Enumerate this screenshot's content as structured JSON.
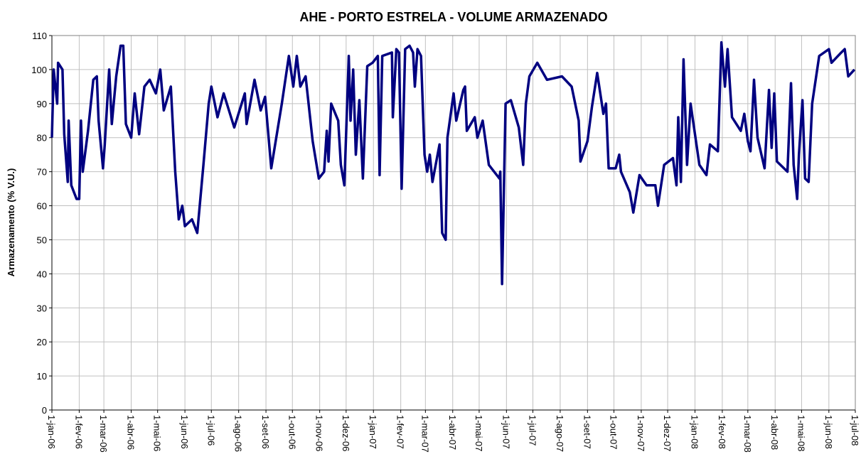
{
  "chart_data": {
    "type": "line",
    "title": "AHE - PORTO ESTRELA - VOLUME ARMAZENADO",
    "y_label": "Armazenamento (% V.U.)",
    "x": [
      "2006-01-01",
      "2006-01-03",
      "2006-01-07",
      "2006-01-08",
      "2006-01-13",
      "2006-01-15",
      "2006-01-19",
      "2006-01-20",
      "2006-01-23",
      "2006-01-29",
      "2006-02-01",
      "2006-02-03",
      "2006-02-05",
      "2006-02-11",
      "2006-02-17",
      "2006-02-21",
      "2006-02-23",
      "2006-02-28",
      "2006-03-02",
      "2006-03-07",
      "2006-03-10",
      "2006-03-15",
      "2006-03-20",
      "2006-03-23",
      "2006-03-26",
      "2006-04-01",
      "2006-04-05",
      "2006-04-10",
      "2006-04-16",
      "2006-04-22",
      "2006-04-29",
      "2006-05-04",
      "2006-05-08",
      "2006-05-16",
      "2006-05-21",
      "2006-05-25",
      "2006-05-29",
      "2006-06-01",
      "2006-06-09",
      "2006-06-15",
      "2006-06-22",
      "2006-06-28",
      "2006-07-01",
      "2006-07-08",
      "2006-07-15",
      "2006-07-27",
      "2006-08-08",
      "2006-08-10",
      "2006-08-19",
      "2006-08-26",
      "2006-08-31",
      "2006-09-07",
      "2006-09-19",
      "2006-09-27",
      "2006-10-02",
      "2006-10-06",
      "2006-10-10",
      "2006-10-16",
      "2006-10-24",
      "2006-10-31",
      "2006-11-06",
      "2006-11-09",
      "2006-11-11",
      "2006-11-14",
      "2006-11-22",
      "2006-11-25",
      "2006-11-29",
      "2006-12-04",
      "2006-12-06",
      "2006-12-09",
      "2006-12-12",
      "2006-12-16",
      "2006-12-20",
      "2006-12-25",
      "2006-12-31",
      "2007-01-06",
      "2007-01-08",
      "2007-01-11",
      "2007-01-22",
      "2007-01-23",
      "2007-01-27",
      "2007-01-30",
      "2007-02-02",
      "2007-02-06",
      "2007-02-11",
      "2007-02-15",
      "2007-02-17",
      "2007-02-20",
      "2007-02-24",
      "2007-02-28",
      "2007-03-03",
      "2007-03-06",
      "2007-03-09",
      "2007-03-17",
      "2007-03-20",
      "2007-03-24",
      "2007-03-26",
      "2007-04-02",
      "2007-04-05",
      "2007-04-13",
      "2007-04-15",
      "2007-04-17",
      "2007-04-26",
      "2007-04-29",
      "2007-05-05",
      "2007-05-12",
      "2007-05-24",
      "2007-05-25",
      "2007-05-27",
      "2007-05-31",
      "2007-06-06",
      "2007-06-15",
      "2007-06-20",
      "2007-06-23",
      "2007-06-27",
      "2007-07-06",
      "2007-07-17",
      "2007-08-03",
      "2007-08-14",
      "2007-08-22",
      "2007-08-24",
      "2007-09-01",
      "2007-09-06",
      "2007-09-12",
      "2007-09-19",
      "2007-09-22",
      "2007-09-25",
      "2007-10-03",
      "2007-10-07",
      "2007-10-09",
      "2007-10-19",
      "2007-10-23",
      "2007-10-30",
      "2007-11-07",
      "2007-11-17",
      "2007-11-20",
      "2007-11-27",
      "2007-12-07",
      "2007-12-11",
      "2007-12-13",
      "2007-12-16",
      "2007-12-19",
      "2007-12-23",
      "2007-12-27",
      "2008-01-06",
      "2008-01-14",
      "2008-01-18",
      "2008-01-27",
      "2008-01-31",
      "2008-02-04",
      "2008-02-07",
      "2008-02-12",
      "2008-02-22",
      "2008-02-26",
      "2008-03-01",
      "2008-03-04",
      "2008-03-08",
      "2008-03-12",
      "2008-03-20",
      "2008-03-25",
      "2008-03-28",
      "2008-03-31",
      "2008-04-03",
      "2008-04-15",
      "2008-04-19",
      "2008-04-22",
      "2008-04-26",
      "2008-04-28",
      "2008-05-02",
      "2008-05-05",
      "2008-05-09",
      "2008-05-13",
      "2008-05-21",
      "2008-06-01",
      "2008-06-04",
      "2008-06-15",
      "2008-06-19",
      "2008-06-23",
      "2008-06-30"
    ],
    "series": [
      {
        "name": "Armazenamento",
        "color": "#000080",
        "values": [
          80,
          100,
          90,
          102,
          100,
          81,
          67,
          85,
          66,
          62,
          62,
          85,
          70,
          82,
          97,
          98,
          85,
          71,
          78,
          100,
          84,
          98,
          107,
          107,
          84,
          80,
          93,
          81,
          95,
          97,
          93,
          100,
          88,
          95,
          70,
          56,
          60,
          54,
          56,
          52,
          72,
          90,
          95,
          86,
          93,
          83,
          93,
          84,
          97,
          88,
          92,
          71,
          90,
          104,
          95,
          104,
          95,
          98,
          79,
          68,
          70,
          82,
          73,
          90,
          85,
          72,
          66,
          104,
          85,
          100,
          75,
          91,
          68,
          101,
          102,
          104,
          69,
          104,
          105,
          86,
          106,
          105,
          65,
          106,
          107,
          105,
          95,
          106,
          104,
          75,
          70,
          75,
          67,
          78,
          52,
          50,
          80,
          93,
          85,
          94,
          95,
          82,
          86,
          80,
          85,
          72,
          68,
          70,
          37,
          90,
          91,
          83,
          72,
          90,
          98,
          102,
          97,
          98,
          95,
          85,
          73,
          79,
          89,
          99,
          87,
          90,
          71,
          71,
          75,
          70,
          64,
          58,
          69,
          66,
          66,
          60,
          72,
          74,
          66,
          86,
          67,
          103,
          72,
          90,
          72,
          69,
          78,
          76,
          108,
          95,
          106,
          86,
          82,
          87,
          79,
          76,
          97,
          80,
          71,
          94,
          77,
          93,
          73,
          70,
          96,
          72,
          62,
          75,
          91,
          68,
          67,
          90,
          104,
          106,
          102,
          105,
          106,
          98,
          100
        ]
      }
    ],
    "xlim": [
      "2006-01-01",
      "2008-07-01"
    ],
    "xticks": [
      {
        "value": "2006-01-01",
        "label": "1-jan-06"
      },
      {
        "value": "2006-02-01",
        "label": "1-fev-06"
      },
      {
        "value": "2006-03-01",
        "label": "1-mar-06"
      },
      {
        "value": "2006-04-01",
        "label": "1-abr-06"
      },
      {
        "value": "2006-05-01",
        "label": "1-mai-06"
      },
      {
        "value": "2006-06-01",
        "label": "1-jun-06"
      },
      {
        "value": "2006-07-01",
        "label": "1-jul-06"
      },
      {
        "value": "2006-08-01",
        "label": "1-ago-06"
      },
      {
        "value": "2006-09-01",
        "label": "1-set-06"
      },
      {
        "value": "2006-10-01",
        "label": "1-out-06"
      },
      {
        "value": "2006-11-01",
        "label": "1-nov-06"
      },
      {
        "value": "2006-12-01",
        "label": "1-dez-06"
      },
      {
        "value": "2007-01-01",
        "label": "1-jan-07"
      },
      {
        "value": "2007-02-01",
        "label": "1-fev-07"
      },
      {
        "value": "2007-03-01",
        "label": "1-mar-07"
      },
      {
        "value": "2007-04-01",
        "label": "1-abr-07"
      },
      {
        "value": "2007-05-01",
        "label": "1-mai-07"
      },
      {
        "value": "2007-06-01",
        "label": "1-jun-07"
      },
      {
        "value": "2007-07-01",
        "label": "1-jul-07"
      },
      {
        "value": "2007-08-01",
        "label": "1-ago-07"
      },
      {
        "value": "2007-09-01",
        "label": "1-set-07"
      },
      {
        "value": "2007-10-01",
        "label": "1-out-07"
      },
      {
        "value": "2007-11-01",
        "label": "1-nov-07"
      },
      {
        "value": "2007-12-01",
        "label": "1-dez-07"
      },
      {
        "value": "2008-01-01",
        "label": "1-jan-08"
      },
      {
        "value": "2008-02-01",
        "label": "1-fev-08"
      },
      {
        "value": "2008-03-01",
        "label": "1-mar-08"
      },
      {
        "value": "2008-04-01",
        "label": "1-abr-08"
      },
      {
        "value": "2008-05-01",
        "label": "1-mai-08"
      },
      {
        "value": "2008-06-01",
        "label": "1-jun-08"
      },
      {
        "value": "2008-07-01",
        "label": "1-jul-08"
      }
    ],
    "ylim": [
      0,
      110
    ],
    "yticks": [
      0,
      10,
      20,
      30,
      40,
      50,
      60,
      70,
      80,
      90,
      100,
      110
    ],
    "grid": true
  }
}
